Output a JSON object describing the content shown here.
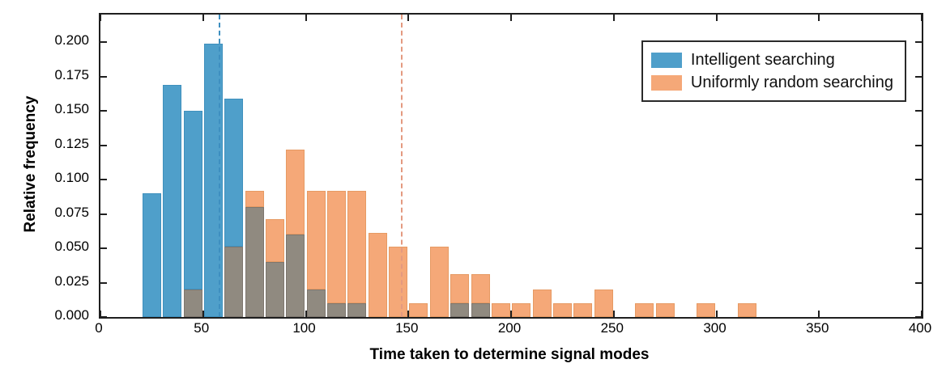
{
  "figure": {
    "xlabel": "Time taken to determine signal modes",
    "ylabel": "Relative frequency"
  },
  "legend": {
    "items": [
      {
        "label": "Intelligent searching",
        "color": "#4f9fca"
      },
      {
        "label": "Uniformly random searching",
        "color": "#f5a878"
      }
    ]
  },
  "axes": {
    "x_ticks": [
      {
        "v": 0,
        "label": "0"
      },
      {
        "v": 50,
        "label": "50"
      },
      {
        "v": 100,
        "label": "100"
      },
      {
        "v": 150,
        "label": "150"
      },
      {
        "v": 200,
        "label": "200"
      },
      {
        "v": 250,
        "label": "250"
      },
      {
        "v": 300,
        "label": "300"
      },
      {
        "v": 350,
        "label": "350"
      },
      {
        "v": 400,
        "label": "400"
      }
    ],
    "y_ticks": [
      {
        "v": 0.0,
        "label": "0.000"
      },
      {
        "v": 0.025,
        "label": "0.025"
      },
      {
        "v": 0.05,
        "label": "0.050"
      },
      {
        "v": 0.075,
        "label": "0.075"
      },
      {
        "v": 0.1,
        "label": "0.100"
      },
      {
        "v": 0.125,
        "label": "0.125"
      },
      {
        "v": 0.15,
        "label": "0.150"
      },
      {
        "v": 0.175,
        "label": "0.175"
      },
      {
        "v": 0.2,
        "label": "0.200"
      }
    ]
  },
  "chart_data": {
    "type": "bar",
    "subtype": "overlaid-histogram",
    "title": "",
    "xlabel": "Time taken to determine signal modes",
    "ylabel": "Relative frequency",
    "xlim": [
      0,
      400
    ],
    "ylim": [
      0,
      0.22
    ],
    "grid": false,
    "legend_position": "top-right",
    "bin_width": 10,
    "bin_starts": [
      20,
      30,
      40,
      50,
      60,
      70,
      80,
      90,
      100,
      110,
      120,
      130,
      140,
      150,
      160,
      170,
      180,
      190,
      200,
      210,
      220,
      230,
      240,
      250,
      260,
      270,
      280,
      290,
      300,
      310
    ],
    "series": [
      {
        "name": "Intelligent searching",
        "values": [
          0.09,
          0.169,
          0.15,
          0.199,
          0.159,
          0.08,
          0.04,
          0.06,
          0.02,
          0.01,
          0.01,
          0,
          0,
          0,
          0,
          0.01,
          0.01,
          0,
          0,
          0,
          0,
          0,
          0,
          0,
          0,
          0,
          0,
          0,
          0,
          0
        ]
      },
      {
        "name": "Uniformly random searching",
        "values": [
          0,
          0,
          0.02,
          0,
          0.051,
          0.092,
          0.071,
          0.122,
          0.092,
          0.092,
          0.092,
          0.061,
          0.051,
          0.01,
          0.051,
          0.031,
          0.031,
          0.01,
          0.01,
          0.02,
          0.01,
          0.01,
          0.02,
          0,
          0.01,
          0.01,
          0,
          0.01,
          0,
          0.01
        ]
      }
    ],
    "mean_lines": [
      {
        "series": "Intelligent searching",
        "x": 57.7,
        "color": "#3e8fc0",
        "style": "dashed"
      },
      {
        "series": "Uniformly random searching",
        "x": 146.5,
        "color": "#e49a80",
        "style": "dashed"
      }
    ],
    "colors": {
      "blue": "#4f9fca",
      "blue_edge": "#3f90bd",
      "orange": "#f5a878",
      "orange_edge": "#e69a63",
      "overlap": "#908a80",
      "overlap_edge": "#7e776f",
      "axis": "#1f1f1f"
    }
  }
}
